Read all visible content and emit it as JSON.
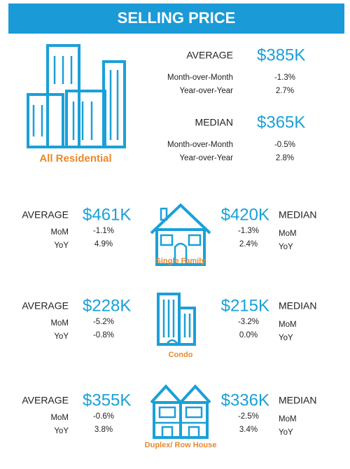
{
  "header": {
    "title": "SELLING PRICE"
  },
  "all_residential": {
    "label": "All Residential",
    "average": {
      "label": "AVERAGE",
      "value": "$385K",
      "rows": [
        {
          "label": "Month-over-Month",
          "change": "-1.3%"
        },
        {
          "label": "Year-over-Year",
          "change": "2.7%"
        }
      ]
    },
    "median": {
      "label": "MEDIAN",
      "value": "$365K",
      "rows": [
        {
          "label": "Month-over-Month",
          "change": "-0.5%"
        },
        {
          "label": "Year-over-Year",
          "change": "2.8%"
        }
      ]
    }
  },
  "segments": [
    {
      "label": "Single Family",
      "average": {
        "label": "AVERAGE",
        "value": "$461K",
        "rows": [
          {
            "label": "MoM",
            "change": "-1.1%"
          },
          {
            "label": "YoY",
            "change": "4.9%"
          }
        ]
      },
      "median": {
        "label": "MEDIAN",
        "value": "$420K",
        "rows": [
          {
            "label": "MoM",
            "change": "-1.3%"
          },
          {
            "label": "YoY",
            "change": "2.4%"
          }
        ]
      }
    },
    {
      "label": "Condo",
      "average": {
        "label": "AVERAGE",
        "value": "$228K",
        "rows": [
          {
            "label": "MoM",
            "change": "-5.2%"
          },
          {
            "label": "YoY",
            "change": "-0.8%"
          }
        ]
      },
      "median": {
        "label": "MEDIAN",
        "value": "$215K",
        "rows": [
          {
            "label": "MoM",
            "change": "-3.2%"
          },
          {
            "label": "YoY",
            "change": "0.0%"
          }
        ]
      }
    },
    {
      "label": "Duplex/ Row House",
      "average": {
        "label": "AVERAGE",
        "value": "$355K",
        "rows": [
          {
            "label": "MoM",
            "change": "-0.6%"
          },
          {
            "label": "YoY",
            "change": "3.8%"
          }
        ]
      },
      "median": {
        "label": "MEDIAN",
        "value": "$336K",
        "rows": [
          {
            "label": "MoM",
            "change": "-2.5%"
          },
          {
            "label": "YoY",
            "change": "3.4%"
          }
        ]
      }
    }
  ]
}
